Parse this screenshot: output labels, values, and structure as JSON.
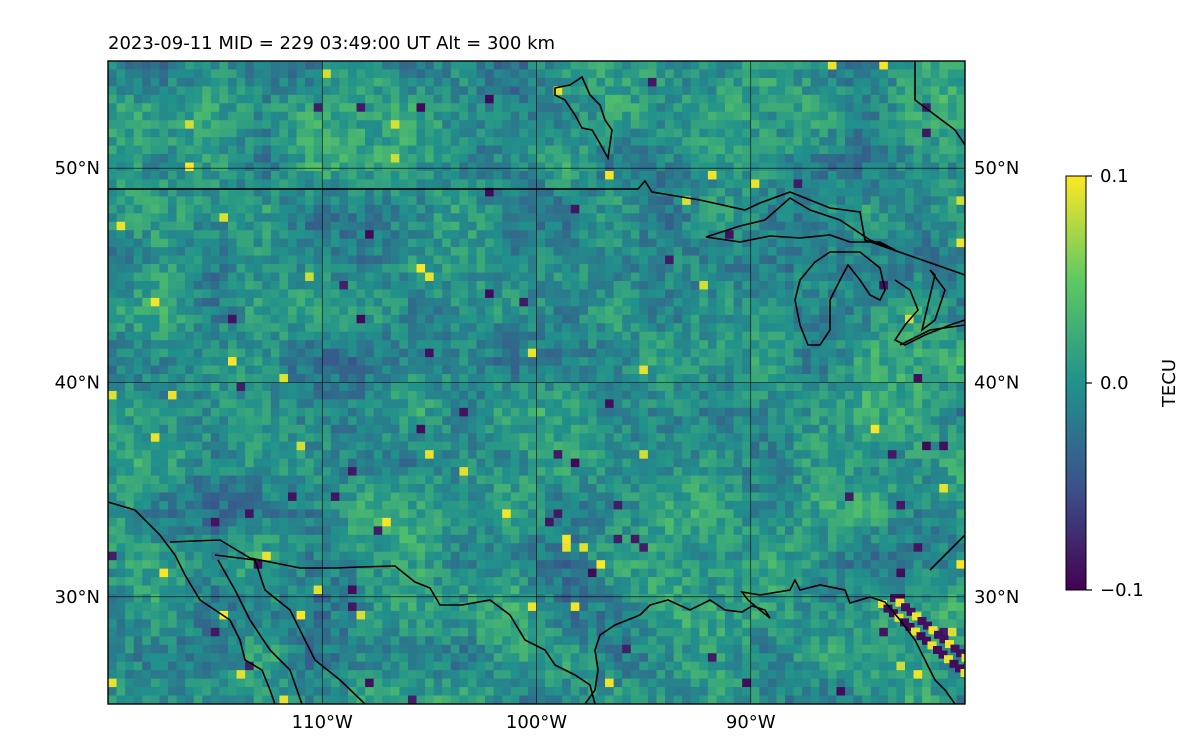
{
  "figure": {
    "title": "2023-09-11  MID = 229    03:49:00  UT  Alt = 300 km"
  },
  "map": {
    "lon_range": [
      -120,
      -80
    ],
    "lat_range": [
      25,
      55
    ],
    "lat_ticks": [
      {
        "value": 50,
        "label": "50°N"
      },
      {
        "value": 40,
        "label": "40°N"
      },
      {
        "value": 30,
        "label": "30°N"
      }
    ],
    "lon_ticks": [
      {
        "value": -110,
        "label": "110°W"
      },
      {
        "value": -100,
        "label": "100°W"
      },
      {
        "value": -90,
        "label": "90°W"
      }
    ],
    "field": "TEC perturbation (noise-like, near 0 TECU)",
    "colormap": [
      "#440154",
      "#3b528b",
      "#21918c",
      "#5ec962",
      "#fde725"
    ],
    "coastline_color": "#000000",
    "grid_color": "#000000"
  },
  "colorbar": {
    "label": "TECU",
    "range": [
      -0.1,
      0.1
    ],
    "ticks": [
      {
        "value": 0.1,
        "label": "0.1"
      },
      {
        "value": 0.0,
        "label": "0.0"
      },
      {
        "value": -0.1,
        "label": "−0.1"
      }
    ]
  }
}
